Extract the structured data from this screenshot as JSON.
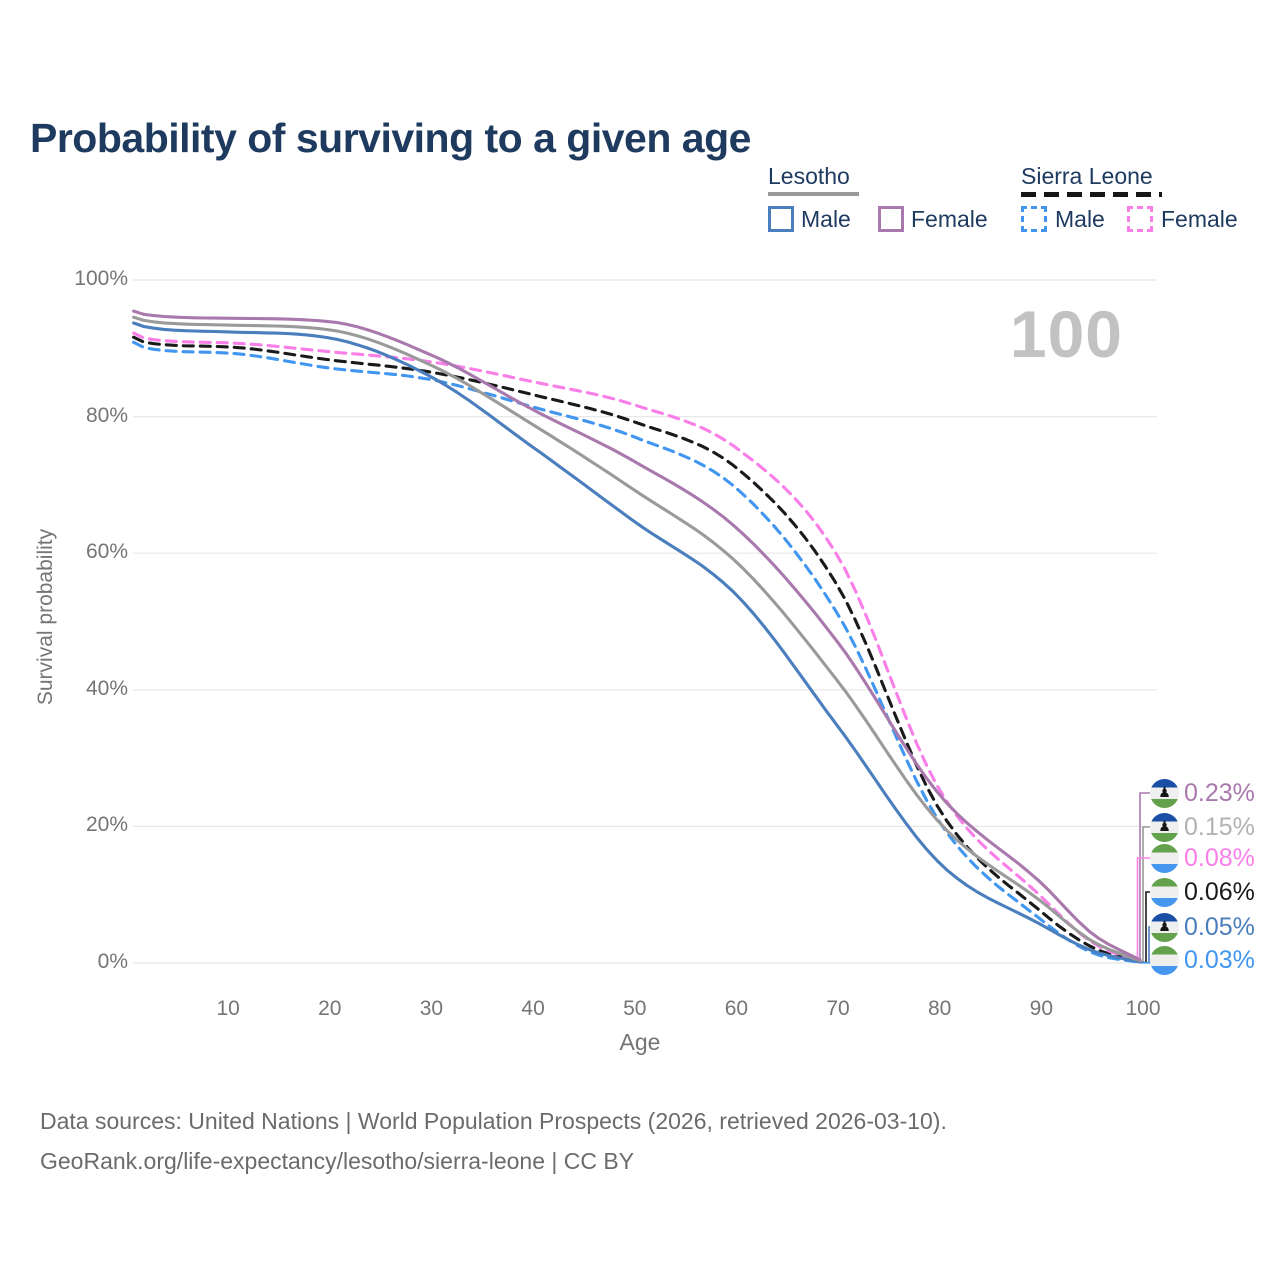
{
  "title": "Probability of surviving to a given age",
  "big_age_label": "100",
  "legend": {
    "lesotho": {
      "name": "Lesotho",
      "male": "Male",
      "female": "Female"
    },
    "sierra_leone": {
      "name": "Sierra Leone",
      "male": "Male",
      "female": "Female"
    }
  },
  "colors": {
    "title_text": "#1e3a5f",
    "axis_text": "#757575",
    "grid": "#e8e8e8",
    "big_label": "#c2c2c2",
    "lesotho_underline": "#9a9a9a",
    "sierra_leone_underline": "#161616",
    "flag_lesotho": [
      "#1b4fa5",
      "#efefef",
      "#63a14c"
    ],
    "flag_sierra_leone": [
      "#63a14c",
      "#efefef",
      "#4596ef"
    ],
    "hat_glyph": "♟︎"
  },
  "chart_data": {
    "type": "line",
    "title": "Probability of surviving to a given age",
    "xlabel": "Age",
    "ylabel": "Survival probability",
    "xlim": [
      0,
      100
    ],
    "ylim": [
      0,
      100
    ],
    "grid": "horizontal",
    "legend_position": "top-right",
    "x_ticks": [
      "10",
      "20",
      "30",
      "40",
      "50",
      "60",
      "70",
      "80",
      "90",
      "100"
    ],
    "x_tick_values": [
      10,
      20,
      30,
      40,
      50,
      60,
      70,
      80,
      90,
      100
    ],
    "y_ticks": [
      "0%",
      "20%",
      "40%",
      "60%",
      "80%",
      "100%"
    ],
    "y_tick_values": [
      0,
      20,
      40,
      60,
      80,
      100
    ],
    "x": [
      0,
      2,
      10,
      20,
      30,
      40,
      50,
      60,
      70,
      80,
      90,
      95,
      100
    ],
    "series": [
      {
        "name": "Lesotho Female",
        "country": "Lesotho",
        "sex": "Female",
        "color": "#a979ae",
        "dashed": false,
        "values": [
          95.8,
          94.9,
          94.4,
          93.9,
          89.0,
          81.0,
          73.4,
          63.7,
          46.9,
          24.6,
          11.7,
          4.3,
          0.23
        ],
        "end_label": "0.23%",
        "flag": "lesotho"
      },
      {
        "name": "Lesotho Total",
        "country": "Lesotho",
        "sex": "Both",
        "color": "#9a9a9a",
        "dashed": false,
        "values": [
          94.9,
          94.0,
          93.4,
          92.7,
          87.5,
          78.8,
          69.2,
          58.7,
          41.2,
          20.5,
          9.0,
          3.2,
          0.15
        ],
        "end_label": "0.15%",
        "label_color": "#b2b2b2",
        "flag": "lesotho"
      },
      {
        "name": "Sierra Leone Female",
        "country": "Sierra Leone",
        "sex": "Female",
        "color": "#f97ee8",
        "dashed": true,
        "values": [
          92.8,
          91.4,
          90.8,
          89.5,
          88.0,
          85.1,
          81.7,
          75.4,
          59.5,
          25.3,
          9.7,
          3.0,
          0.08
        ],
        "end_label": "0.08%",
        "flag": "sierra_leone"
      },
      {
        "name": "Sierra Leone Total",
        "country": "Sierra Leone",
        "sex": "Both",
        "color": "#1a1a1a",
        "dashed": true,
        "values": [
          92.2,
          90.8,
          90.2,
          88.3,
          86.5,
          83.2,
          79.2,
          72.5,
          55.1,
          22.4,
          7.5,
          2.3,
          0.06
        ],
        "end_label": "0.06%",
        "flag": "sierra_leone"
      },
      {
        "name": "Lesotho Male",
        "country": "Lesotho",
        "sex": "Male",
        "color": "#4a7ebc",
        "dashed": false,
        "values": [
          94.1,
          93.1,
          92.4,
          91.5,
          85.8,
          75.5,
          64.6,
          53.9,
          34.6,
          14.6,
          5.6,
          1.8,
          0.05
        ],
        "end_label": "0.05%",
        "flag": "lesotho"
      },
      {
        "name": "Sierra Leone Male",
        "country": "Sierra Leone",
        "sex": "Male",
        "color": "#4196f0",
        "dashed": true,
        "values": [
          91.5,
          90.0,
          89.3,
          87.1,
          85.4,
          81.4,
          77.0,
          69.5,
          51.0,
          20.6,
          6.3,
          1.5,
          0.03
        ],
        "end_label": "0.03%",
        "flag": "sierra_leone"
      }
    ]
  },
  "footer": {
    "line1": "Data sources: United Nations | World Population Prospects (2026, retrieved 2026-03-10).",
    "line2": "GeoRank.org/life-expectancy/lesotho/sierra-leone | CC BY"
  }
}
